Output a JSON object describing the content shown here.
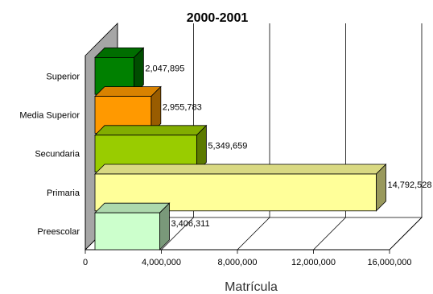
{
  "chart_data": {
    "type": "bar",
    "orientation": "horizontal",
    "title": "2000-2001",
    "xlabel": "Matrícula",
    "ylabel": "",
    "categories": [
      "Preescolar",
      "Primaria",
      "Secundaria",
      "Media Superior",
      "Superior"
    ],
    "values": [
      3406311,
      14792528,
      5349659,
      2955783,
      2047895
    ],
    "value_labels": [
      "3,406,311",
      "14,792,528",
      "5,349,659",
      "2,955,783",
      "2,047,895"
    ],
    "colors": [
      "#ccffcc",
      "#ffff99",
      "#99cc00",
      "#ff9900",
      "#008000"
    ],
    "xlim": [
      0,
      16000000
    ],
    "xticks": [
      0,
      4000000,
      8000000,
      12000000,
      16000000
    ],
    "xtick_labels": [
      "0",
      "4,000,000",
      "8,000,000",
      "12,000,000",
      "16,000,000"
    ],
    "grid": true,
    "legend": "none",
    "style": "3d"
  }
}
